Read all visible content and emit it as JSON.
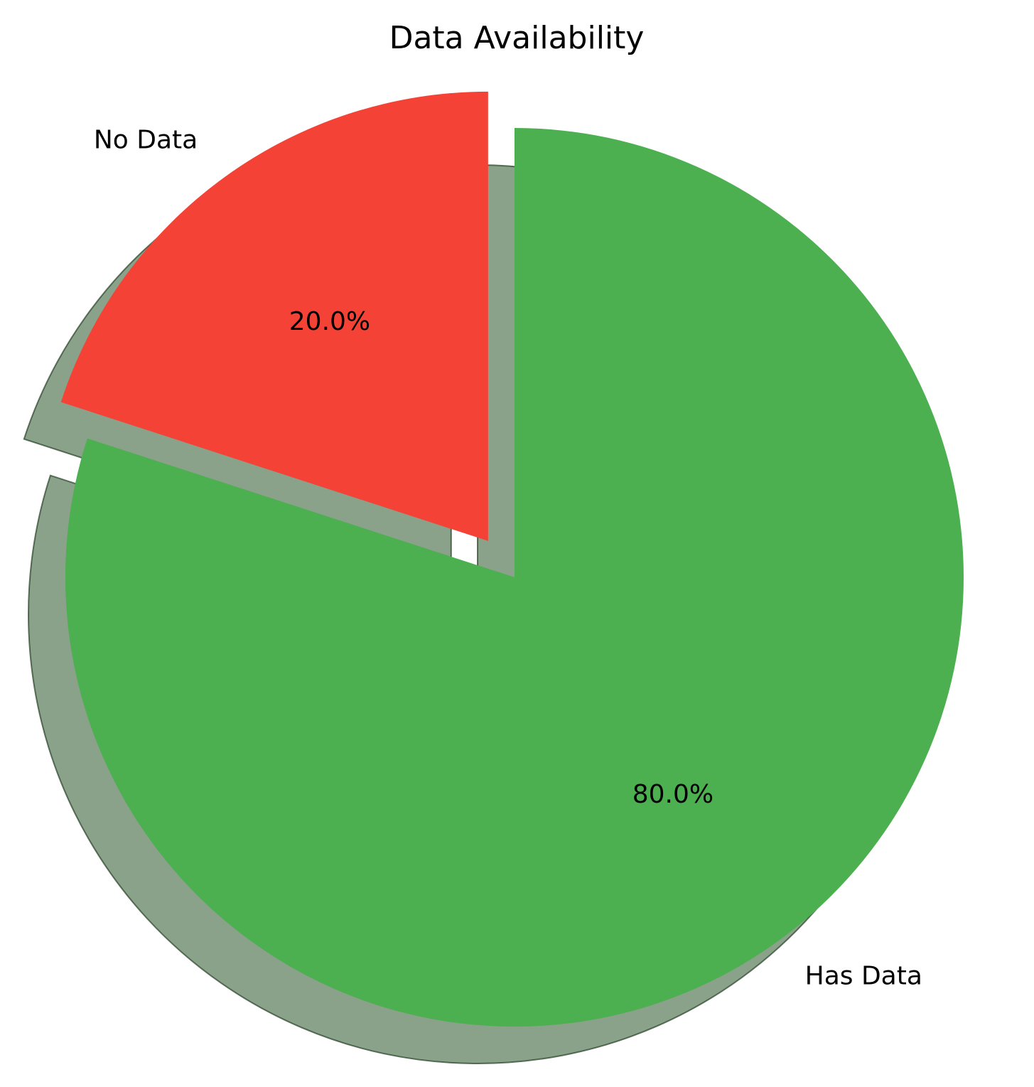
{
  "chart_data": {
    "type": "pie",
    "title": "Data Availability",
    "slices": [
      {
        "label": "Has Data",
        "value": 80.0,
        "pct_text": "80.0%",
        "color": "#4caf50",
        "exploded": false
      },
      {
        "label": "No Data",
        "value": 20.0,
        "pct_text": "20.0%",
        "color": "#f44336",
        "exploded": true
      }
    ],
    "shadow": true,
    "start_angle_deg": 90,
    "direction": "clockwise"
  }
}
